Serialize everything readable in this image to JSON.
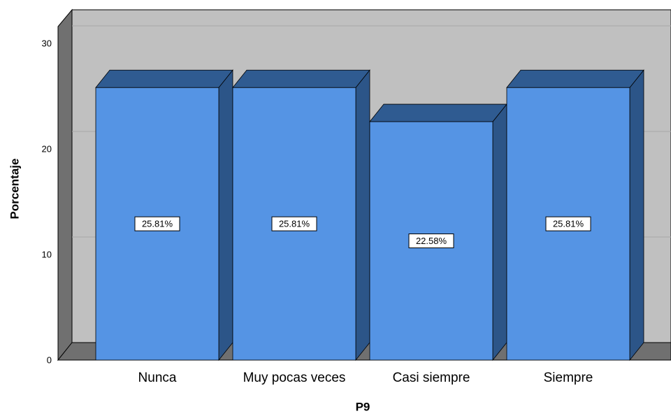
{
  "chart_data": {
    "type": "bar3d",
    "categories": [
      "Nunca",
      "Muy pocas veces",
      "Casi siempre",
      "Siempre"
    ],
    "values": [
      25.81,
      25.81,
      22.58,
      25.81
    ],
    "value_labels": [
      "25.81%",
      "25.81%",
      "22.58%",
      "25.81%"
    ],
    "color": "#5594e4",
    "xlabel": "P9",
    "ylabel": "Porcentaje",
    "ylim": [
      0,
      30
    ],
    "yticks": [
      0,
      10,
      20,
      30
    ],
    "grid": true
  }
}
